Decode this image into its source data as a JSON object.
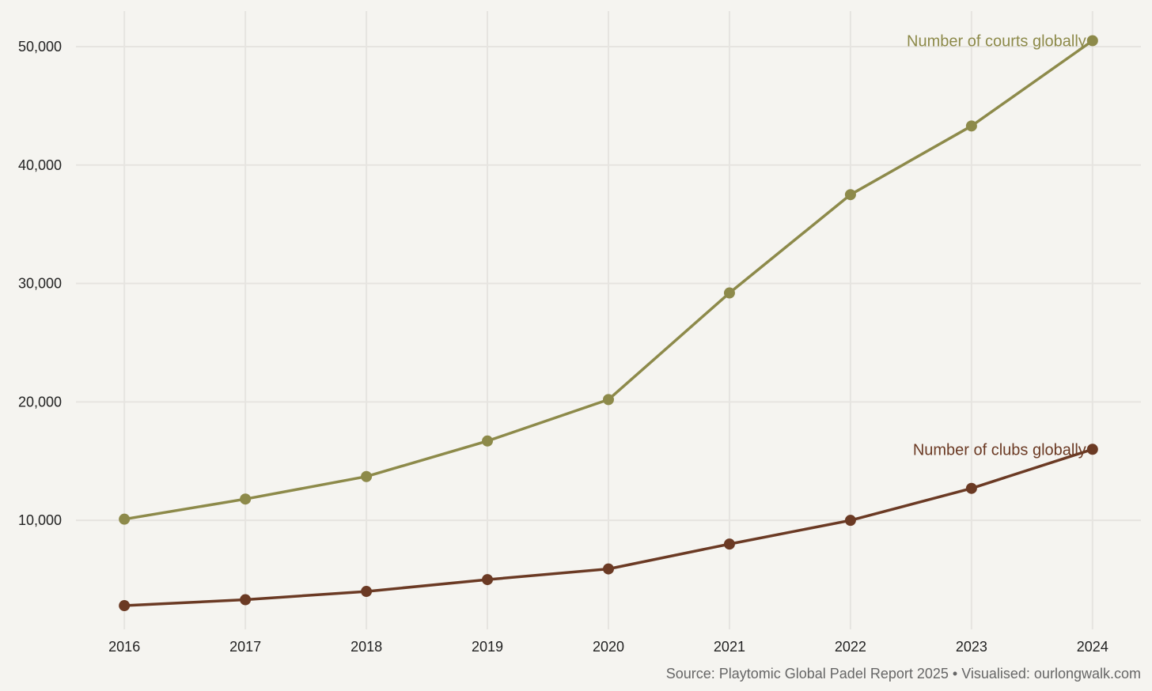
{
  "chart_data": {
    "type": "line",
    "x": [
      2016,
      2017,
      2018,
      2019,
      2020,
      2021,
      2022,
      2023,
      2024
    ],
    "x_tick_labels": [
      "2016",
      "2017",
      "2018",
      "2019",
      "2020",
      "2021",
      "2022",
      "2023",
      "2024"
    ],
    "series": [
      {
        "name": "Number of courts globally",
        "color": "#8d8a4a",
        "values": [
          10100,
          11800,
          13700,
          16700,
          20200,
          29200,
          37500,
          43300,
          50500
        ]
      },
      {
        "name": "Number of clubs globally",
        "color": "#6b3a24",
        "values": [
          2800,
          3300,
          4000,
          5000,
          5900,
          8000,
          10000,
          12700,
          16000
        ]
      }
    ],
    "y_ticks": [
      10000,
      20000,
      30000,
      40000,
      50000
    ],
    "y_tick_labels": [
      "10,000",
      "20,000",
      "30,000",
      "40,000",
      "50,000"
    ],
    "ylim": [
      800,
      53000
    ],
    "xlim": [
      2015.6,
      2024.4
    ],
    "grid": true,
    "legend": "direct labels at series end",
    "title": "",
    "xlabel": "",
    "ylabel": "",
    "source": "Source: Playtomic Global Padel Report 2025 • Visualised: ourlongwalk.com"
  }
}
